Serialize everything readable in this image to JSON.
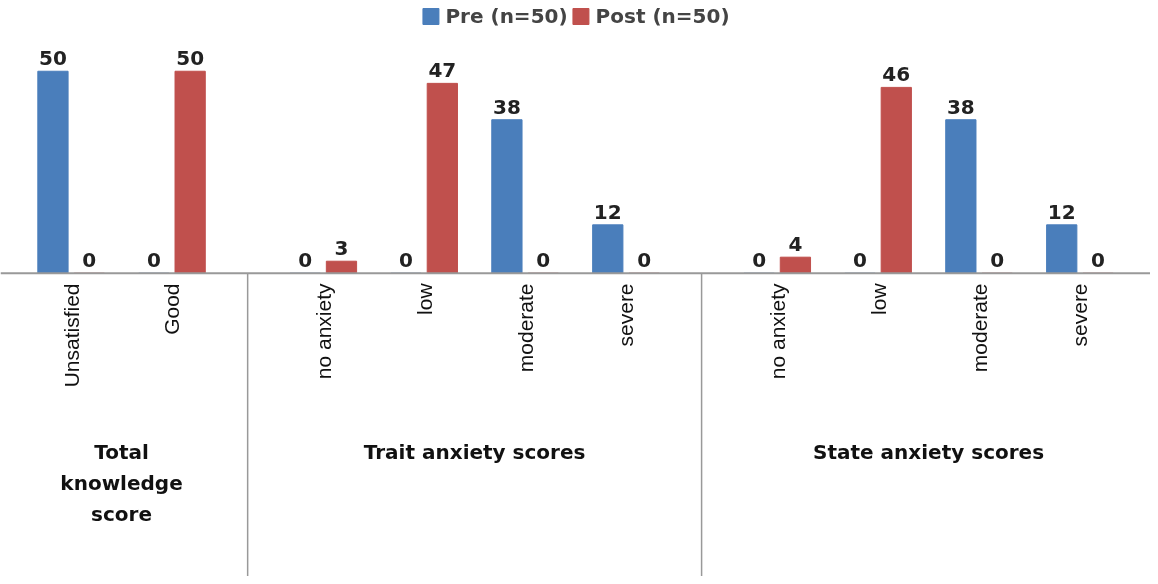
{
  "chart_data": {
    "type": "bar",
    "categories": [
      "Unsatisfied",
      "Good",
      "no anxiety",
      "low",
      "moderate",
      "severe",
      "no anxiety",
      "low",
      "moderate",
      "severe"
    ],
    "series": [
      {
        "name": "Pre (n=50)",
        "color": "#4a7ebb",
        "values": [
          50,
          0,
          0,
          0,
          38,
          12,
          0,
          0,
          38,
          12
        ]
      },
      {
        "name": "Post (n=50)",
        "color": "#c0504d",
        "values": [
          0,
          50,
          3,
          47,
          0,
          0,
          4,
          46,
          0,
          0
        ]
      }
    ],
    "annotations": [
      "Total knowledge score",
      "Trait anxiety scores",
      "State anxiety scores"
    ],
    "data_labels": true,
    "legend": "top",
    "grid": false
  }
}
